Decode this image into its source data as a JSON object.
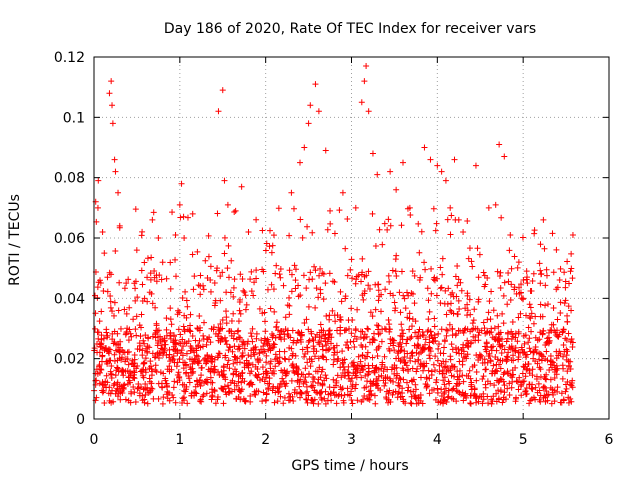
{
  "chart_data": {
    "type": "scatter",
    "title": "Day 186 of 2020, Rate Of TEC Index for receiver vars",
    "xlabel": "GPS time / hours",
    "ylabel": "ROTI / TECUs",
    "xlim": [
      0,
      6
    ],
    "ylim": [
      0,
      0.12
    ],
    "xticks": [
      0,
      1,
      2,
      3,
      4,
      5,
      6
    ],
    "xtick_labels": [
      "0",
      "1",
      "2",
      "3",
      "4",
      "5",
      "6"
    ],
    "yticks": [
      0,
      0.02,
      0.04,
      0.06,
      0.08,
      0.1,
      0.12
    ],
    "ytick_labels": [
      "0",
      "0.02",
      "0.04",
      "0.06",
      "0.08",
      "0.1",
      "0.12"
    ],
    "grid": true,
    "marker": "+",
    "color": "#ff0000",
    "series": [
      {
        "name": "vars",
        "x_range": [
          0.0,
          5.58
        ],
        "typical_range": [
          0.005,
          0.05
        ],
        "points": [
          [
            0.02,
            0.072
          ],
          [
            0.05,
            0.079
          ],
          [
            0.07,
            0.046
          ],
          [
            0.1,
            0.062
          ],
          [
            0.12,
            0.055
          ],
          [
            0.18,
            0.108
          ],
          [
            0.2,
            0.112
          ],
          [
            0.21,
            0.104
          ],
          [
            0.22,
            0.098
          ],
          [
            0.24,
            0.086
          ],
          [
            0.25,
            0.082
          ],
          [
            0.28,
            0.075
          ],
          [
            0.3,
            0.064
          ],
          [
            0.68,
            0.066
          ],
          [
            0.75,
            0.06
          ],
          [
            0.95,
            0.061
          ],
          [
            1.0,
            0.071
          ],
          [
            1.02,
            0.078
          ],
          [
            1.05,
            0.06
          ],
          [
            1.15,
            0.068
          ],
          [
            1.45,
            0.102
          ],
          [
            1.5,
            0.109
          ],
          [
            1.52,
            0.079
          ],
          [
            1.56,
            0.071
          ],
          [
            1.65,
            0.069
          ],
          [
            1.72,
            0.077
          ],
          [
            1.8,
            0.062
          ],
          [
            2.3,
            0.075
          ],
          [
            2.4,
            0.085
          ],
          [
            2.45,
            0.09
          ],
          [
            2.5,
            0.098
          ],
          [
            2.52,
            0.104
          ],
          [
            2.58,
            0.111
          ],
          [
            2.62,
            0.102
          ],
          [
            2.7,
            0.089
          ],
          [
            2.75,
            0.069
          ],
          [
            2.9,
            0.075
          ],
          [
            3.05,
            0.07
          ],
          [
            3.12,
            0.105
          ],
          [
            3.15,
            0.112
          ],
          [
            3.17,
            0.117
          ],
          [
            3.2,
            0.102
          ],
          [
            3.25,
            0.088
          ],
          [
            3.3,
            0.081
          ],
          [
            3.45,
            0.082
          ],
          [
            3.52,
            0.076
          ],
          [
            3.6,
            0.085
          ],
          [
            3.68,
            0.07
          ],
          [
            3.85,
            0.09
          ],
          [
            3.92,
            0.086
          ],
          [
            4.0,
            0.084
          ],
          [
            4.05,
            0.082
          ],
          [
            4.1,
            0.079
          ],
          [
            4.15,
            0.07
          ],
          [
            4.2,
            0.086
          ],
          [
            4.25,
            0.066
          ],
          [
            4.3,
            0.062
          ],
          [
            4.45,
            0.084
          ],
          [
            4.6,
            0.07
          ],
          [
            4.68,
            0.071
          ],
          [
            4.72,
            0.091
          ],
          [
            4.78,
            0.087
          ],
          [
            4.85,
            0.061
          ],
          [
            4.95,
            0.052
          ],
          [
            5.0,
            0.04
          ],
          [
            5.1,
            0.035
          ],
          [
            5.2,
            0.045
          ],
          [
            5.4,
            0.033
          ],
          [
            5.58,
            0.061
          ]
        ]
      }
    ]
  }
}
